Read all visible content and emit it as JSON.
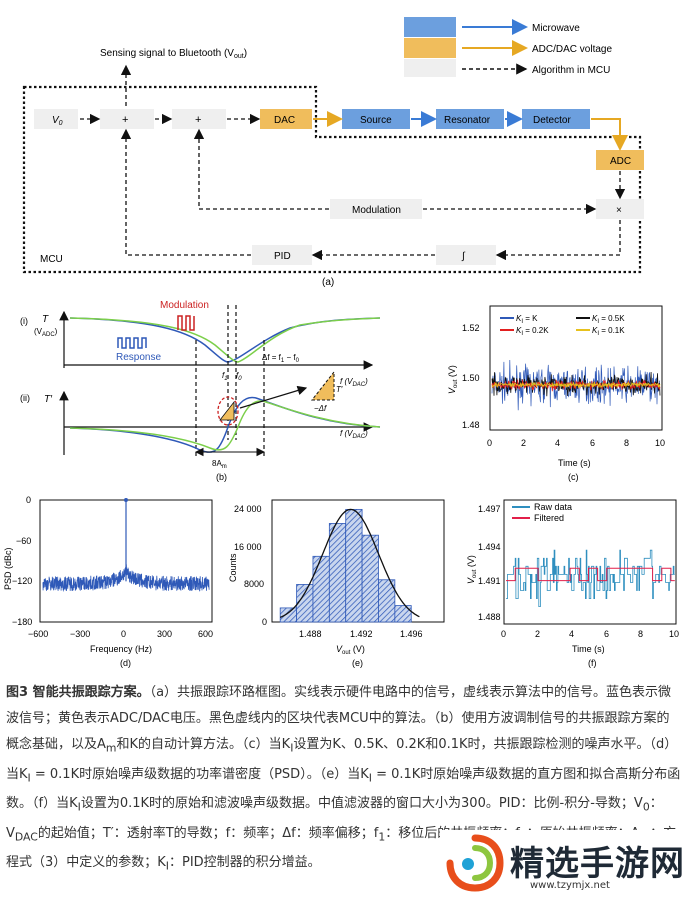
{
  "legend": {
    "microwave": "Microwave",
    "adc_dac": "ADC/DAC voltage",
    "algorithm": "Algorithm in MCU"
  },
  "colors": {
    "microwave": "#3a7bd5",
    "adc": "#e6a823",
    "box_blue": "#6c9fde",
    "box_orange": "#f0bd5c",
    "light_box": "#efefef"
  },
  "panel_a": {
    "sensing": "Sensing signal to Bluetooth (V",
    "sensing_sub": "out",
    "sensing_end": ")",
    "v0": "V",
    "v0_sub": "0",
    "plus": "+",
    "dac": "DAC",
    "source": "Source",
    "resonator": "Resonator",
    "detector": "Detector",
    "adc": "ADC",
    "times": "×",
    "modulation": "Modulation",
    "pid": "PID",
    "integral": "∫",
    "mcu": "MCU",
    "label": "(a)"
  },
  "panel_b": {
    "i": "(i)",
    "ii": "(ii)",
    "t": "T",
    "t_unit": "(V",
    "t_unit_sub": "ADC",
    "t_unit_end": ")",
    "tprime": "T′",
    "modulation": "Modulation",
    "response": "Response",
    "delta_f": "Δf = f",
    "delta_f1": "1",
    "delta_f_mid": " − f",
    "delta_f0": "0",
    "f1": "f",
    "f1_sub": "1",
    "f0": "f",
    "f0_sub": "0",
    "fx": "f (V",
    "fx_sub": "DAC",
    "fx_end": ")",
    "tri_t": "T′",
    "tri_df": "−Δf",
    "amp": "8A",
    "amp_sub": "m",
    "label": "(b)"
  },
  "panel_c": {
    "ylabel": "V",
    "ylabel_sub": "out",
    "ylabel_unit": " (V)",
    "xlabel": "Time (s)",
    "label": "(c)",
    "yticks": [
      "1.52",
      "1.50",
      "1.48"
    ],
    "xticks": [
      "0",
      "2",
      "4",
      "6",
      "8",
      "10"
    ],
    "legend": [
      "K",
      "K",
      "K",
      "K"
    ],
    "legend_vals": [
      " = K",
      " = 0.5K",
      " = 0.2K",
      " = 0.1K"
    ],
    "legend_sub": "I"
  },
  "panel_d": {
    "ylabel": "PSD (dBc)",
    "xlabel": "Frequency (Hz)",
    "label": "(d)",
    "yticks": [
      "0",
      "−60",
      "−120",
      "−180"
    ],
    "xticks": [
      "−600",
      "−300",
      "0",
      "300",
      "600"
    ]
  },
  "panel_e": {
    "ylabel": "Counts",
    "xlabel": "V",
    "xlabel_sub": "out",
    "xlabel_unit": " (V)",
    "label": "(e)",
    "yticks": [
      "24 000",
      "16 000",
      "8000",
      "0"
    ],
    "xticks": [
      "1.488",
      "1.492",
      "1.496"
    ]
  },
  "panel_f": {
    "ylabel": "V",
    "ylabel_sub": "out",
    "ylabel_unit": " (V)",
    "xlabel": "Time (s)",
    "label": "(f)",
    "yticks": [
      "1.497",
      "1.494",
      "1.491",
      "1.488"
    ],
    "xticks": [
      "0",
      "2",
      "4",
      "6",
      "8",
      "10"
    ],
    "legend_raw": "Raw data",
    "legend_filtered": "Filtered"
  },
  "chart_data": [
    {
      "type": "line",
      "title": "(c)",
      "xlabel": "Time (s)",
      "ylabel": "Vout (V)",
      "xlim": [
        0,
        10
      ],
      "ylim": [
        1.475,
        1.53
      ],
      "series": [
        {
          "name": "KI = K",
          "center": 1.495,
          "spread": 0.015
        },
        {
          "name": "KI = 0.5K",
          "center": 1.495,
          "spread": 0.008
        },
        {
          "name": "KI = 0.2K",
          "center": 1.495,
          "spread": 0.004
        },
        {
          "name": "KI = 0.1K",
          "center": 1.495,
          "spread": 0.002
        }
      ]
    },
    {
      "type": "line",
      "title": "(d)",
      "xlabel": "Frequency (Hz)",
      "ylabel": "PSD (dBc)",
      "xlim": [
        -600,
        600
      ],
      "ylim": [
        -180,
        0
      ],
      "peak": {
        "x": 0,
        "y": 0
      },
      "floor": -120
    },
    {
      "type": "bar",
      "title": "(e)",
      "xlabel": "Vout (V)",
      "ylabel": "Counts",
      "categories": [
        "1.4875",
        "1.4885",
        "1.4895",
        "1.4905",
        "1.4915",
        "1.4925",
        "1.4935",
        "1.4945"
      ],
      "values": [
        3000,
        8000,
        14000,
        21000,
        24000,
        18500,
        9000,
        3500
      ],
      "ylim": [
        0,
        26000
      ]
    },
    {
      "type": "line",
      "title": "(f)",
      "xlabel": "Time (s)",
      "ylabel": "Vout (V)",
      "xlim": [
        0,
        10
      ],
      "ylim": [
        1.4875,
        1.4975
      ],
      "series": [
        {
          "name": "Raw data",
          "center": 1.4915,
          "spread": 0.002
        },
        {
          "name": "Filtered",
          "center": 1.4915,
          "spread": 0.0005
        }
      ]
    }
  ],
  "caption": {
    "fig": "图3 智能共振跟踪方案。",
    "a": "（a）共振跟踪环路框图。实线表示硬件电路中的信号，虚线表示算法中的信号。蓝色表示微波信号；黄色表示ADC/DAC电压。黑色虚线内的区块代表MCU中的算法。",
    "b": "（b）使用方波调制信号的共振跟踪方案的概念基础，以及A",
    "b_sub": "m",
    "b_end": "和K的自动计算方法。",
    "c": "（c）当K",
    "c_sub": "I",
    "c_end": "设置为K、0.5K、0.2K和0.1K时，共振跟踪检测的噪声水平。",
    "d": "（d）当K",
    "d_sub": "I",
    "d_end": " = 0.1K时原始噪声级数据的功率谱密度（PSD）。",
    "e": "（e）当K",
    "e_sub": "I",
    "e_end": " = 0.1K时原始噪声级数据的直方图和拟合高斯分布函数。",
    "f": "（f）当K",
    "f_sub": "I",
    "f_end": "设置为0.1K时的原始和滤波噪声级数据。中值滤波器的窗口大小为300。PID：比例-积分-导数；V",
    "f_sub2": "0",
    "f_end2": "：V",
    "f_sub3": "DAC",
    "f_end3": "的起始值；T′：透射率T的导数；f：频率；Δf：频率偏移；f",
    "f_sub4": "1",
    "f_end4": "：移位后的共振频率；f",
    "f_sub5": "0",
    "f_end5": "：原始共振频率；A",
    "f_sub6": "m",
    "f_end6": "：方程式（3）中定义的参数；K",
    "f_sub7": "I",
    "f_end7": "：PID控制器的积分增益。"
  },
  "watermark": {
    "title": "精选手游网",
    "url": "www.tzymjx.net"
  }
}
